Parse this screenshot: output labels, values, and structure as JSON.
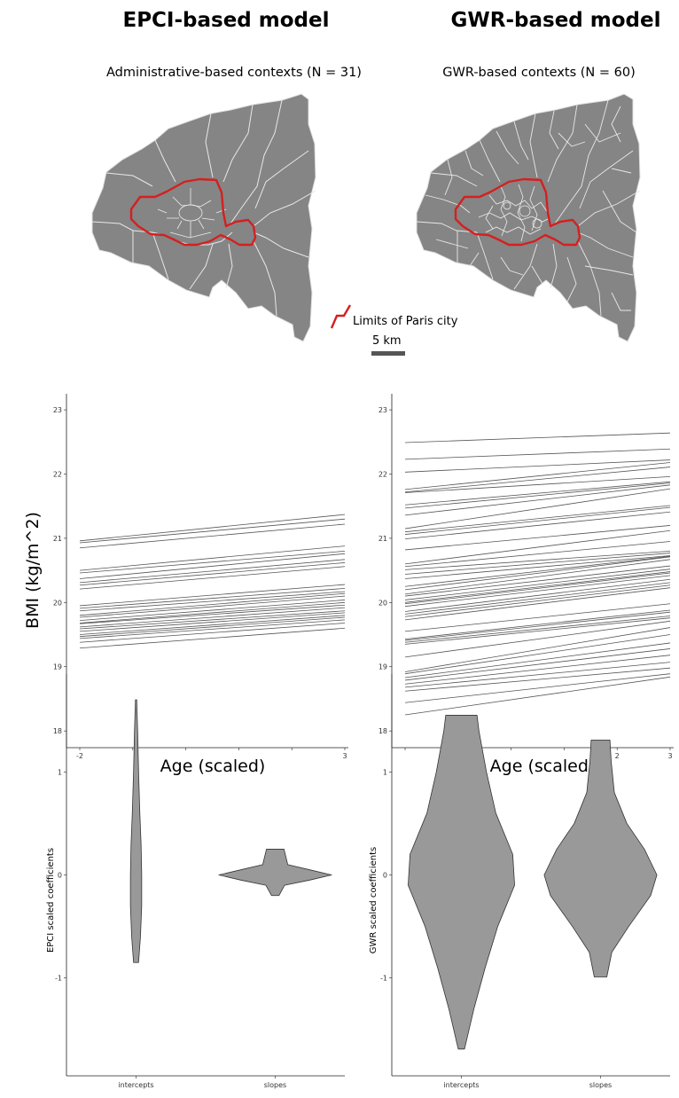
{
  "titles": {
    "left": "EPCI-based model",
    "right": "GWR-based model"
  },
  "maps": {
    "left_subtitle": "Administrative-based contexts (N = 31)",
    "right_subtitle": "GWR-based contexts (N = 60)",
    "legend_label": "Limits of Paris city",
    "scale_label": "5 km",
    "fill_color": "#858585",
    "border_color": "#e8e8e8",
    "paris_color": "#d42020"
  },
  "chart_data": [
    {
      "type": "line",
      "panel": "EPCI-based model",
      "ylabel": "BMI (kg/m^2)",
      "xlabel": "Age (scaled)",
      "xlim": [
        -2,
        3
      ],
      "ylim": [
        17.85,
        23.25
      ],
      "yticks": [
        18,
        19,
        20,
        21,
        22,
        23
      ],
      "xtick_labels": [
        "-2",
        "",
        "",
        "",
        "",
        "3"
      ],
      "line_color": "#555555",
      "lines": [
        [
          20.96,
          21.37
        ],
        [
          20.93,
          21.3
        ],
        [
          20.85,
          21.22
        ],
        [
          20.5,
          20.88
        ],
        [
          20.46,
          20.8
        ],
        [
          20.37,
          20.76
        ],
        [
          20.31,
          20.67
        ],
        [
          20.27,
          20.62
        ],
        [
          20.21,
          20.56
        ],
        [
          19.95,
          20.28
        ],
        [
          19.91,
          20.22
        ],
        [
          19.87,
          20.17
        ],
        [
          19.8,
          20.14
        ],
        [
          19.77,
          20.1
        ],
        [
          19.72,
          20.04
        ],
        [
          19.68,
          20.0
        ],
        [
          19.67,
          19.96
        ],
        [
          19.62,
          19.92
        ],
        [
          19.59,
          19.87
        ],
        [
          19.55,
          19.84
        ],
        [
          19.5,
          19.8
        ],
        [
          19.47,
          19.77
        ],
        [
          19.44,
          19.73
        ],
        [
          19.38,
          19.68
        ],
        [
          19.29,
          19.6
        ]
      ]
    },
    {
      "type": "line",
      "panel": "GWR-based model",
      "xlabel": "Age (scaled)",
      "xlim": [
        -2,
        3
      ],
      "ylim": [
        17.85,
        23.25
      ],
      "yticks": [
        18,
        19,
        20,
        21,
        22,
        23
      ],
      "xtick_labels": [
        "",
        "",
        "",
        "",
        "2",
        "3"
      ],
      "line_color": "#555555",
      "lines": [
        [
          22.49,
          22.64
        ],
        [
          22.23,
          22.39
        ],
        [
          22.03,
          22.22
        ],
        [
          21.76,
          22.18
        ],
        [
          21.72,
          22.11
        ],
        [
          21.71,
          21.96
        ],
        [
          21.52,
          21.88
        ],
        [
          21.47,
          21.86
        ],
        [
          21.36,
          21.83
        ],
        [
          21.15,
          21.77
        ],
        [
          21.1,
          21.51
        ],
        [
          21.06,
          21.48
        ],
        [
          20.99,
          21.41
        ],
        [
          20.82,
          21.2
        ],
        [
          20.6,
          21.12
        ],
        [
          20.56,
          20.95
        ],
        [
          20.51,
          20.8
        ],
        [
          20.44,
          20.77
        ],
        [
          20.37,
          20.73
        ],
        [
          20.25,
          20.72
        ],
        [
          20.2,
          20.71
        ],
        [
          20.13,
          20.67
        ],
        [
          20.1,
          20.57
        ],
        [
          20.04,
          20.52
        ],
        [
          20.0,
          20.48
        ],
        [
          19.98,
          20.46
        ],
        [
          19.94,
          20.42
        ],
        [
          19.86,
          20.36
        ],
        [
          19.82,
          20.31
        ],
        [
          19.78,
          20.27
        ],
        [
          19.73,
          20.23
        ],
        [
          19.55,
          19.98
        ],
        [
          19.43,
          19.88
        ],
        [
          19.41,
          19.85
        ],
        [
          19.38,
          19.79
        ],
        [
          19.35,
          19.76
        ],
        [
          19.15,
          19.71
        ],
        [
          18.92,
          19.61
        ],
        [
          18.89,
          19.5
        ],
        [
          18.83,
          19.37
        ],
        [
          18.79,
          19.28
        ],
        [
          18.73,
          19.18
        ],
        [
          18.68,
          19.07
        ],
        [
          18.62,
          18.98
        ],
        [
          18.44,
          18.89
        ],
        [
          18.25,
          18.84
        ]
      ]
    },
    {
      "type": "violin",
      "panel": "EPCI-based model",
      "ylabel": "EPCI scaled coefficients",
      "categories": [
        "intercepts",
        "slopes"
      ],
      "ylim": [
        -1.95,
        1.95
      ],
      "yticks": [
        -1,
        0,
        1
      ],
      "fill_color": "#999999",
      "violins": [
        {
          "name": "intercepts",
          "profile": [
            [
              -0.85,
              0.04
            ],
            [
              -0.6,
              0.07
            ],
            [
              -0.3,
              0.09
            ],
            [
              0.0,
              0.09
            ],
            [
              0.3,
              0.08
            ],
            [
              0.6,
              0.06
            ],
            [
              1.0,
              0.04
            ],
            [
              1.4,
              0.025
            ],
            [
              1.7,
              0.01
            ]
          ]
        },
        {
          "name": "slopes",
          "profile": [
            [
              -0.2,
              0.06
            ],
            [
              -0.1,
              0.15
            ],
            [
              -0.05,
              0.55
            ],
            [
              0.0,
              0.9
            ],
            [
              0.05,
              0.55
            ],
            [
              0.1,
              0.2
            ],
            [
              0.2,
              0.16
            ],
            [
              0.25,
              0.14
            ]
          ]
        }
      ]
    },
    {
      "type": "violin",
      "panel": "GWR-based model",
      "ylabel": "GWR scaled coefficients",
      "categories": [
        "intercepts",
        "slopes"
      ],
      "ylim": [
        -1.95,
        1.95
      ],
      "yticks": [
        -1,
        0,
        1
      ],
      "fill_color": "#999999",
      "violins": [
        {
          "name": "intercepts",
          "profile": [
            [
              -1.69,
              0.05
            ],
            [
              -1.3,
              0.2
            ],
            [
              -0.9,
              0.38
            ],
            [
              -0.5,
              0.58
            ],
            [
              -0.1,
              0.85
            ],
            [
              0.2,
              0.82
            ],
            [
              0.6,
              0.55
            ],
            [
              1.0,
              0.4
            ],
            [
              1.4,
              0.28
            ],
            [
              1.55,
              0.25
            ]
          ]
        },
        {
          "name": "slopes",
          "profile": [
            [
              -0.99,
              0.1
            ],
            [
              -0.75,
              0.18
            ],
            [
              -0.5,
              0.45
            ],
            [
              -0.2,
              0.8
            ],
            [
              0.0,
              0.9
            ],
            [
              0.25,
              0.7
            ],
            [
              0.5,
              0.42
            ],
            [
              0.8,
              0.22
            ],
            [
              1.1,
              0.17
            ],
            [
              1.31,
              0.15
            ]
          ]
        }
      ]
    }
  ]
}
